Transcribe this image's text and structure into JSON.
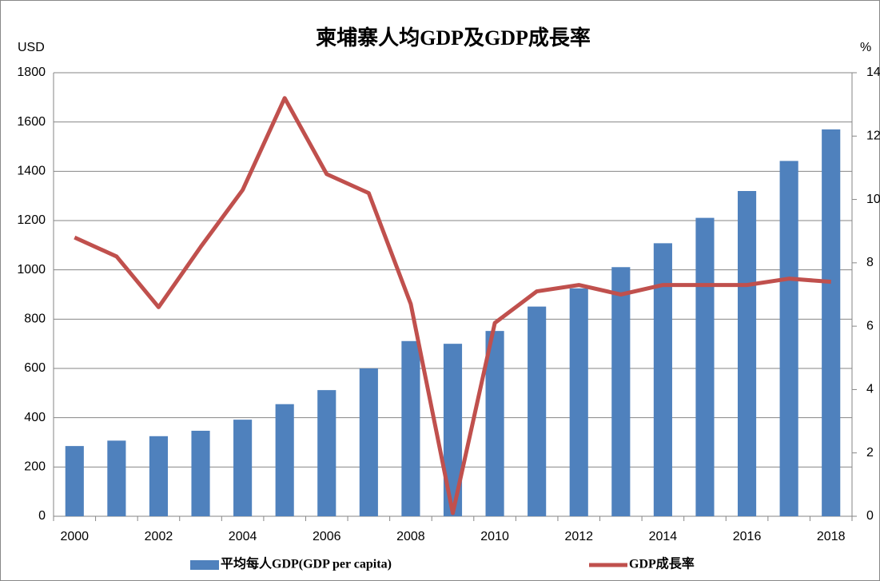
{
  "chart_data": {
    "type": "bar",
    "title": "柬埔寨人均GDP及GDP成長率",
    "y_label": "USD",
    "y2_label": "%",
    "categories": [
      "2000",
      null,
      "2002",
      null,
      "2004",
      null,
      "2006",
      null,
      "2008",
      null,
      "2010",
      null,
      "2012",
      null,
      "2014",
      null,
      "2016",
      null,
      "2018"
    ],
    "series": [
      {
        "name": "平均每人GDP(GDP per capita)",
        "type": "bar",
        "color": "#4f81bd",
        "values": [
          285,
          307,
          325,
          347,
          392,
          455,
          512,
          600,
          711,
          700,
          752,
          851,
          925,
          1011,
          1108,
          1211,
          1320,
          1442,
          1570
        ]
      },
      {
        "name": "GDP成長率",
        "type": "line",
        "axis": "y2",
        "color": "#c0504d",
        "values": [
          8.8,
          8.2,
          6.6,
          8.5,
          10.3,
          13.2,
          10.8,
          10.2,
          6.7,
          0.1,
          6.1,
          7.1,
          7.3,
          7.0,
          7.3,
          7.3,
          7.3,
          7.5,
          7.4
        ]
      }
    ],
    "ylim": [
      0,
      1800
    ],
    "yticks": [
      0,
      200,
      400,
      600,
      800,
      1000,
      1200,
      1400,
      1600,
      1800
    ],
    "y2lim": [
      0,
      14
    ],
    "y2ticks": [
      0,
      2,
      4,
      6,
      8,
      10,
      12,
      14
    ],
    "grid": true,
    "legend": "bottom"
  }
}
